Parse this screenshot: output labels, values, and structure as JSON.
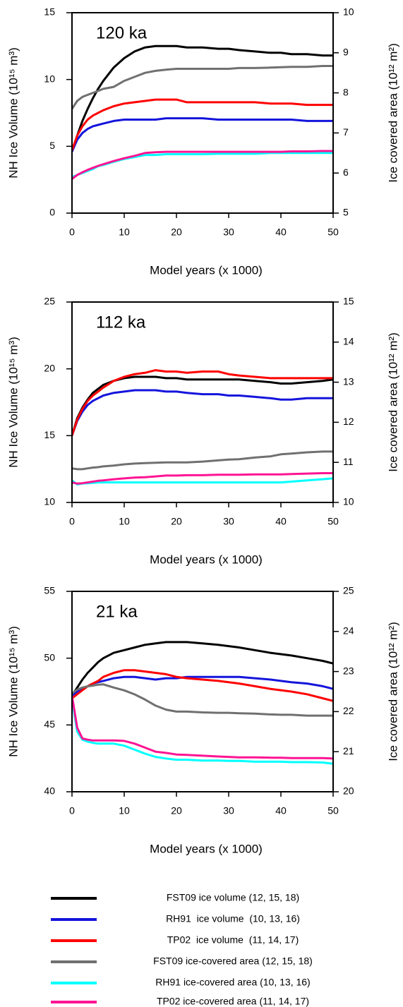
{
  "chart_data": [
    {
      "type": "line",
      "annotation": "120 ka",
      "xlabel": "Model years (x 1000)",
      "ylabel": "NH Ice Volume (10¹⁵ m³)",
      "y2label": "Ice covered area (10¹² m²)",
      "xlim": [
        0,
        50
      ],
      "xticks": [
        0,
        10,
        20,
        30,
        40,
        50
      ],
      "ylim": [
        0,
        15
      ],
      "yticks": [
        0,
        5,
        10,
        15
      ],
      "y2lim": [
        5,
        10
      ],
      "y2ticks": [
        5,
        6,
        7,
        8,
        9,
        10
      ],
      "x": [
        0,
        1,
        2,
        3,
        4,
        5,
        6,
        8,
        10,
        12,
        14,
        16,
        18,
        20,
        22,
        25,
        28,
        30,
        32,
        35,
        38,
        40,
        42,
        45,
        48,
        50
      ],
      "series": [
        {
          "name": "FST09 ice volume (12, 15, 18)",
          "color": "#000000",
          "values": [
            4.6,
            5.8,
            6.9,
            7.8,
            8.6,
            9.3,
            9.9,
            10.9,
            11.6,
            12.1,
            12.4,
            12.5,
            12.5,
            12.5,
            12.4,
            12.4,
            12.3,
            12.3,
            12.2,
            12.1,
            12.0,
            12.0,
            11.9,
            11.9,
            11.8,
            11.8
          ]
        },
        {
          "name": "RH91  ice volume  (10, 13, 16)",
          "color": "#1414dc",
          "values": [
            4.6,
            5.5,
            6.0,
            6.3,
            6.5,
            6.6,
            6.7,
            6.9,
            7.0,
            7.0,
            7.0,
            7.0,
            7.1,
            7.1,
            7.1,
            7.1,
            7.0,
            7.0,
            7.0,
            7.0,
            7.0,
            7.0,
            7.0,
            6.9,
            6.9,
            6.9
          ]
        },
        {
          "name": "TP02  ice volume  (11, 14, 17)",
          "color": "#ff0000",
          "values": [
            4.7,
            5.8,
            6.5,
            7.0,
            7.3,
            7.5,
            7.7,
            8.0,
            8.2,
            8.3,
            8.4,
            8.5,
            8.5,
            8.5,
            8.3,
            8.3,
            8.3,
            8.3,
            8.3,
            8.3,
            8.2,
            8.2,
            8.2,
            8.1,
            8.1,
            8.1
          ]
        },
        {
          "name": "FST09 ice-covered area (12, 15, 18)",
          "color": "#707070",
          "axis": "y2",
          "values": [
            7.6,
            7.8,
            7.9,
            7.95,
            8.0,
            8.05,
            8.1,
            8.15,
            8.3,
            8.4,
            8.5,
            8.55,
            8.58,
            8.6,
            8.6,
            8.6,
            8.6,
            8.6,
            8.62,
            8.62,
            8.63,
            8.64,
            8.65,
            8.65,
            8.67,
            8.67
          ]
        },
        {
          "name": "RH91 ice-covered area (10, 13, 16)",
          "color": "#00ffff",
          "axis": "y2",
          "values": [
            5.9,
            5.95,
            6.0,
            6.05,
            6.1,
            6.17,
            6.2,
            6.28,
            6.35,
            6.4,
            6.45,
            6.45,
            6.47,
            6.47,
            6.47,
            6.47,
            6.48,
            6.48,
            6.48,
            6.48,
            6.5,
            6.5,
            6.5,
            6.5,
            6.5,
            6.5
          ]
        },
        {
          "name": "TP02 ice-covered area (11, 14, 17)",
          "color": "#ff1493",
          "axis": "y2",
          "values": [
            5.85,
            5.95,
            6.02,
            6.08,
            6.13,
            6.18,
            6.22,
            6.3,
            6.37,
            6.43,
            6.5,
            6.52,
            6.53,
            6.53,
            6.53,
            6.53,
            6.53,
            6.53,
            6.53,
            6.53,
            6.53,
            6.53,
            6.54,
            6.54,
            6.55,
            6.55
          ]
        }
      ]
    },
    {
      "type": "line",
      "annotation": "112 ka",
      "xlabel": "Model years (x 1000)",
      "ylabel": "NH Ice Volume (10¹⁵ m³)",
      "y2label": "Ice covered area (10¹² m²)",
      "xlim": [
        0,
        50
      ],
      "xticks": [
        0,
        10,
        20,
        30,
        40,
        50
      ],
      "ylim": [
        10,
        25
      ],
      "yticks": [
        10,
        15,
        20,
        25
      ],
      "y2lim": [
        10,
        15
      ],
      "y2ticks": [
        10,
        11,
        12,
        13,
        14,
        15
      ],
      "x": [
        0,
        1,
        2,
        3,
        4,
        5,
        6,
        8,
        10,
        12,
        14,
        16,
        18,
        20,
        22,
        25,
        28,
        30,
        32,
        35,
        38,
        40,
        42,
        45,
        48,
        50
      ],
      "series": [
        {
          "name": "FST09 ice volume (12, 15, 18)",
          "color": "#000000",
          "values": [
            15,
            16.3,
            17.1,
            17.7,
            18.2,
            18.5,
            18.8,
            19.1,
            19.3,
            19.4,
            19.4,
            19.4,
            19.3,
            19.3,
            19.2,
            19.2,
            19.2,
            19.2,
            19.2,
            19.1,
            19.0,
            18.9,
            18.9,
            19.0,
            19.1,
            19.2
          ]
        },
        {
          "name": "RH91  ice volume  (10, 13, 16)",
          "color": "#1414dc",
          "values": [
            15,
            16.1,
            16.8,
            17.3,
            17.6,
            17.8,
            18.0,
            18.2,
            18.3,
            18.4,
            18.4,
            18.4,
            18.3,
            18.3,
            18.2,
            18.1,
            18.1,
            18.0,
            18.0,
            17.9,
            17.8,
            17.7,
            17.7,
            17.8,
            17.8,
            17.8
          ]
        },
        {
          "name": "TP02  ice volume  (11, 14, 17)",
          "color": "#ff0000",
          "values": [
            15,
            16.2,
            17.0,
            17.6,
            18.0,
            18.3,
            18.6,
            19.1,
            19.4,
            19.6,
            19.7,
            19.9,
            19.8,
            19.8,
            19.7,
            19.8,
            19.8,
            19.6,
            19.5,
            19.4,
            19.3,
            19.3,
            19.3,
            19.3,
            19.3,
            19.3
          ]
        },
        {
          "name": "FST09 ice-covered area (12, 15, 18)",
          "color": "#707070",
          "axis": "y2",
          "values": [
            10.85,
            10.83,
            10.83,
            10.85,
            10.87,
            10.88,
            10.9,
            10.92,
            10.95,
            10.97,
            10.98,
            10.99,
            11.0,
            11.0,
            11.0,
            11.02,
            11.05,
            11.07,
            11.08,
            11.12,
            11.15,
            11.2,
            11.22,
            11.25,
            11.27,
            11.27
          ]
        },
        {
          "name": "RH91 ice-covered area (10, 13, 16)",
          "color": "#00ffff",
          "axis": "y2",
          "values": [
            10.55,
            10.45,
            10.47,
            10.48,
            10.49,
            10.5,
            10.5,
            10.5,
            10.5,
            10.5,
            10.5,
            10.5,
            10.5,
            10.5,
            10.5,
            10.5,
            10.5,
            10.5,
            10.5,
            10.5,
            10.5,
            10.5,
            10.52,
            10.55,
            10.58,
            10.6
          ]
        },
        {
          "name": "TP02 ice-covered area (11, 14, 17)",
          "color": "#ff1493",
          "axis": "y2",
          "values": [
            10.5,
            10.47,
            10.48,
            10.5,
            10.52,
            10.54,
            10.55,
            10.58,
            10.6,
            10.62,
            10.63,
            10.65,
            10.67,
            10.67,
            10.68,
            10.68,
            10.69,
            10.69,
            10.69,
            10.7,
            10.7,
            10.7,
            10.71,
            10.72,
            10.73,
            10.73
          ]
        }
      ]
    },
    {
      "type": "line",
      "annotation": "21 ka",
      "xlabel": "Model years (x 1000)",
      "ylabel": "NH Ice Volume (10¹⁵ m³)",
      "y2label": "Ice covered area (10¹² m²)",
      "xlim": [
        0,
        50
      ],
      "xticks": [
        0,
        10,
        20,
        30,
        40,
        50
      ],
      "ylim": [
        40,
        55
      ],
      "yticks": [
        40,
        45,
        50,
        55
      ],
      "y2lim": [
        20,
        25
      ],
      "y2ticks": [
        20,
        21,
        22,
        23,
        24,
        25
      ],
      "x": [
        0,
        1,
        2,
        3,
        4,
        5,
        6,
        8,
        10,
        12,
        14,
        16,
        18,
        20,
        22,
        25,
        28,
        30,
        32,
        35,
        38,
        40,
        42,
        45,
        48,
        50
      ],
      "series": [
        {
          "name": "FST09 ice volume (12, 15, 18)",
          "color": "#000000",
          "values": [
            47.2,
            47.8,
            48.4,
            48.9,
            49.3,
            49.7,
            50.0,
            50.4,
            50.6,
            50.8,
            51.0,
            51.1,
            51.2,
            51.2,
            51.2,
            51.1,
            51.0,
            50.9,
            50.8,
            50.6,
            50.4,
            50.3,
            50.2,
            50.0,
            49.8,
            49.6
          ]
        },
        {
          "name": "RH91  ice volume  (10, 13, 16)",
          "color": "#1414dc",
          "values": [
            47.2,
            47.5,
            47.7,
            47.9,
            48.1,
            48.2,
            48.3,
            48.5,
            48.6,
            48.6,
            48.5,
            48.4,
            48.5,
            48.5,
            48.6,
            48.6,
            48.6,
            48.6,
            48.6,
            48.5,
            48.4,
            48.3,
            48.2,
            48.1,
            47.9,
            47.7
          ]
        },
        {
          "name": "TP02  ice volume  (11, 14, 17)",
          "color": "#ff0000",
          "values": [
            47.0,
            47.3,
            47.6,
            47.9,
            48.1,
            48.3,
            48.6,
            48.9,
            49.1,
            49.1,
            49.0,
            48.9,
            48.8,
            48.6,
            48.5,
            48.4,
            48.3,
            48.2,
            48.1,
            47.9,
            47.7,
            47.6,
            47.5,
            47.3,
            47.0,
            46.8
          ]
        },
        {
          "name": "FST09 ice-covered area (12, 15, 18)",
          "color": "#707070",
          "axis": "y2",
          "values": [
            22.45,
            22.55,
            22.6,
            22.63,
            22.65,
            22.67,
            22.68,
            22.6,
            22.53,
            22.43,
            22.3,
            22.15,
            22.05,
            22.0,
            22.0,
            21.98,
            21.97,
            21.97,
            21.96,
            21.95,
            21.93,
            21.92,
            21.92,
            21.9,
            21.9,
            21.9
          ]
        },
        {
          "name": "RH91 ice-covered area (10, 13, 16)",
          "color": "#00ffff",
          "axis": "y2",
          "values": [
            22.3,
            21.5,
            21.3,
            21.25,
            21.22,
            21.2,
            21.2,
            21.2,
            21.15,
            21.05,
            20.95,
            20.87,
            20.83,
            20.8,
            20.8,
            20.78,
            20.78,
            20.77,
            20.77,
            20.75,
            20.75,
            20.75,
            20.74,
            20.74,
            20.73,
            20.7
          ]
        },
        {
          "name": "TP02 ice-covered area (11, 14, 17)",
          "color": "#ff1493",
          "axis": "y2",
          "values": [
            22.4,
            21.6,
            21.33,
            21.3,
            21.28,
            21.28,
            21.28,
            21.28,
            21.27,
            21.2,
            21.1,
            21.0,
            20.97,
            20.93,
            20.92,
            20.9,
            20.88,
            20.87,
            20.86,
            20.86,
            20.85,
            20.85,
            20.84,
            20.84,
            20.84,
            20.83
          ]
        }
      ]
    }
  ]
}
